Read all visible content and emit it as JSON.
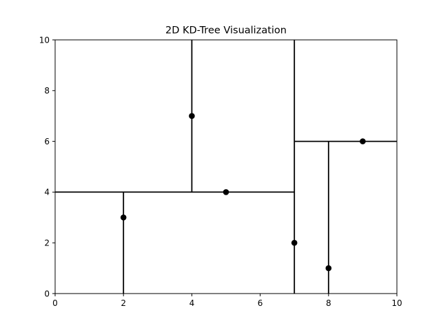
{
  "chart_data": {
    "type": "scatter",
    "title": "2D KD-Tree Visualization",
    "xlabel": "",
    "ylabel": "",
    "xlim": [
      0,
      10
    ],
    "ylim": [
      0,
      10
    ],
    "x_ticks": [
      0,
      2,
      4,
      6,
      8,
      10
    ],
    "y_ticks": [
      0,
      2,
      4,
      6,
      8,
      10
    ],
    "grid": false,
    "point_color": "#000000",
    "line_color": "#000000",
    "points": [
      {
        "x": 2,
        "y": 3
      },
      {
        "x": 4,
        "y": 7
      },
      {
        "x": 5,
        "y": 4
      },
      {
        "x": 7,
        "y": 2
      },
      {
        "x": 8,
        "y": 1
      },
      {
        "x": 9,
        "y": 6
      }
    ],
    "split_lines": [
      {
        "orientation": "vertical",
        "x": 7,
        "y_range": [
          0,
          10
        ]
      },
      {
        "orientation": "horizontal",
        "y": 4,
        "x_range": [
          0,
          7
        ]
      },
      {
        "orientation": "vertical",
        "x": 2,
        "y_range": [
          0,
          4
        ]
      },
      {
        "orientation": "vertical",
        "x": 4,
        "y_range": [
          4,
          10
        ]
      },
      {
        "orientation": "horizontal",
        "y": 6,
        "x_range": [
          7,
          10
        ]
      },
      {
        "orientation": "vertical",
        "x": 8,
        "y_range": [
          0,
          6
        ]
      }
    ]
  }
}
